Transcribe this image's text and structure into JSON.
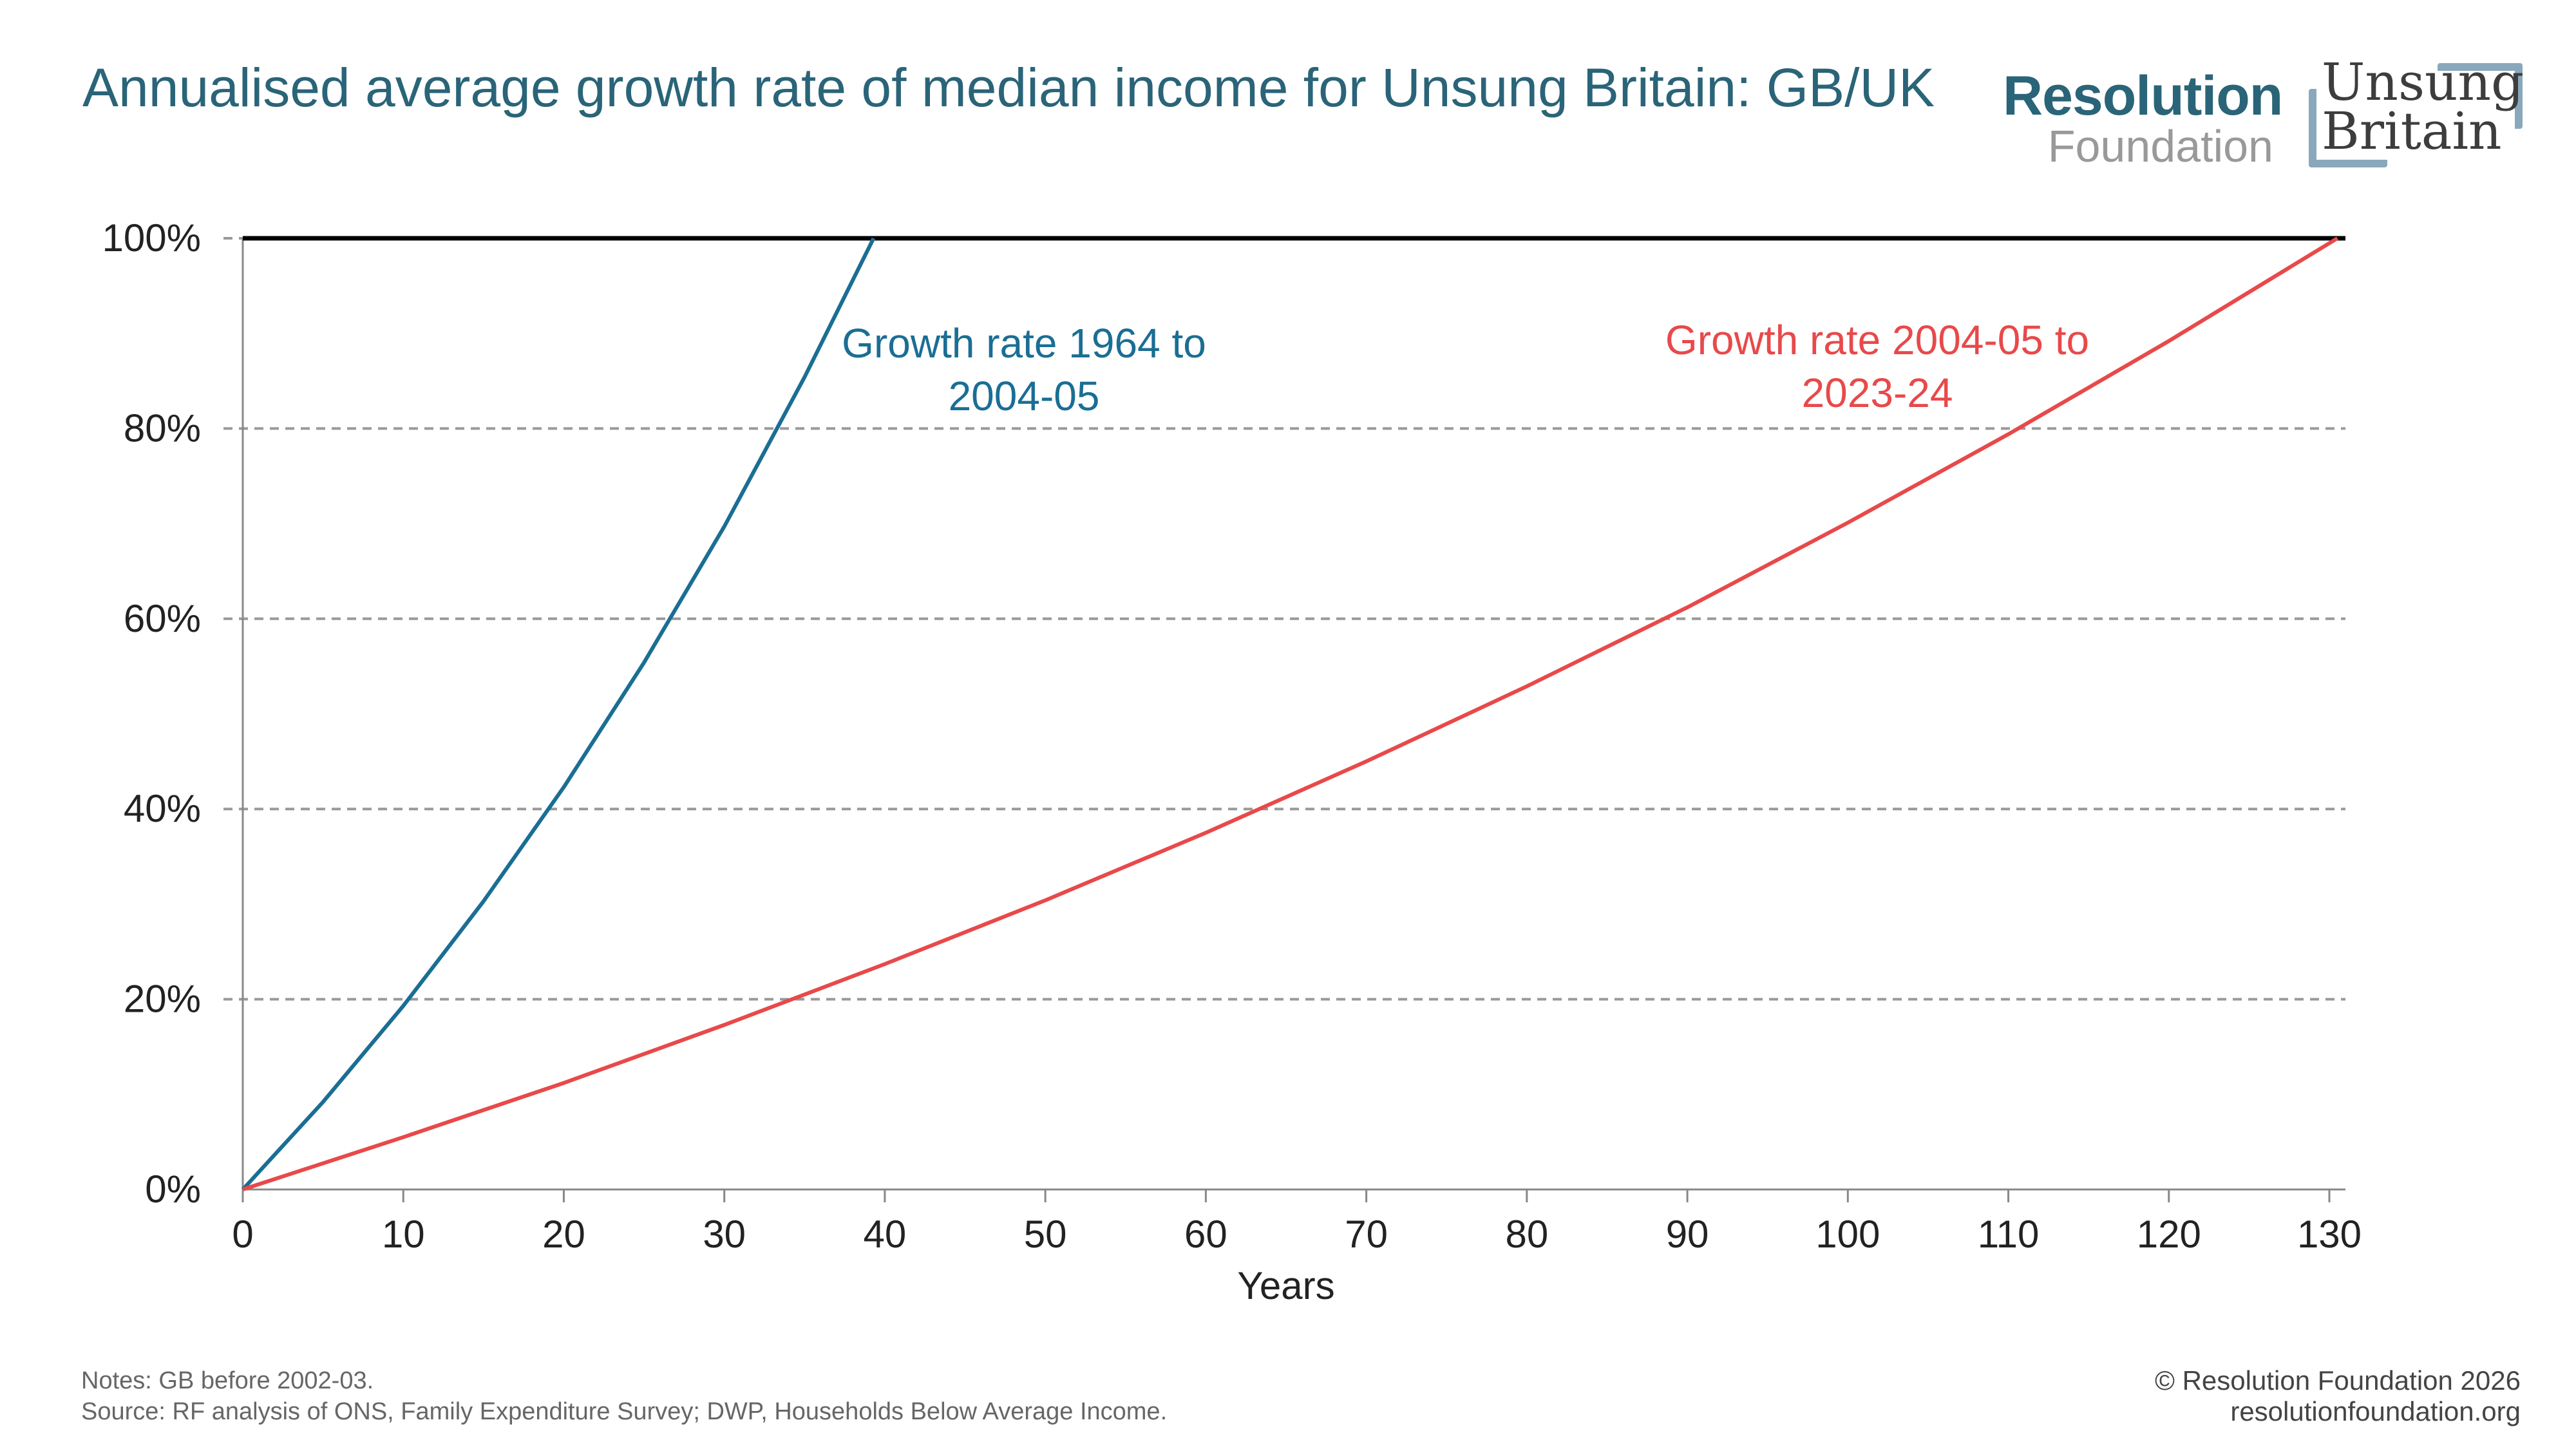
{
  "title": "Annualised average growth rate of median income for Unsung Britain: GB/UK",
  "logos": {
    "resolution_foundation": [
      "Resolution",
      "Foundation"
    ],
    "unsung_britain": [
      "Unsung",
      "Britain"
    ]
  },
  "colors": {
    "series_1964": "#1a6e94",
    "series_2004": "#e8494a",
    "title": "#2a6478",
    "reference_line": "#000000",
    "grid": "#999999"
  },
  "chart_data": {
    "type": "line",
    "title": "Annualised average growth rate of median income for Unsung Britain: GB/UK",
    "xlabel": "Years",
    "ylabel": "",
    "xlim": [
      0,
      130
    ],
    "ylim": [
      0,
      100
    ],
    "xticks": [
      "0",
      "10",
      "20",
      "30",
      "40",
      "50",
      "60",
      "70",
      "80",
      "90",
      "100",
      "110",
      "120",
      "130"
    ],
    "yticks": [
      "0%",
      "20%",
      "40%",
      "60%",
      "80%",
      "100%"
    ],
    "grid": "horizontal dashed",
    "reference_line_y": 100,
    "series": [
      {
        "label": "Growth rate 1964 to 2004-05",
        "label_lines": [
          "Growth rate 1964 to",
          "2004-05"
        ],
        "color": "#1a6e94",
        "x": [
          0,
          5,
          10,
          15,
          20,
          25,
          30,
          35,
          39.3
        ],
        "y": [
          0,
          9.2,
          19.3,
          30.3,
          42.3,
          55.4,
          69.7,
          85.4,
          100
        ]
      },
      {
        "label": "Growth rate 2004-05 to 2023-24",
        "label_lines": [
          "Growth rate 2004-05 to",
          "2023-24"
        ],
        "color": "#e8494a",
        "x": [
          0,
          10,
          20,
          30,
          40,
          50,
          60,
          70,
          80,
          90,
          100,
          110,
          120,
          130.5
        ],
        "y": [
          0,
          5.5,
          11.2,
          17.3,
          23.7,
          30.4,
          37.5,
          45.0,
          52.9,
          61.2,
          70.1,
          79.4,
          89.2,
          100
        ]
      }
    ]
  },
  "footer": {
    "notes": "Notes: GB before 2002-03.",
    "source": "Source: RF analysis of ONS, Family Expenditure Survey; DWP, Households Below Average Income.",
    "copyright": "© Resolution Foundation 2026",
    "website": "resolutionfoundation.org"
  }
}
